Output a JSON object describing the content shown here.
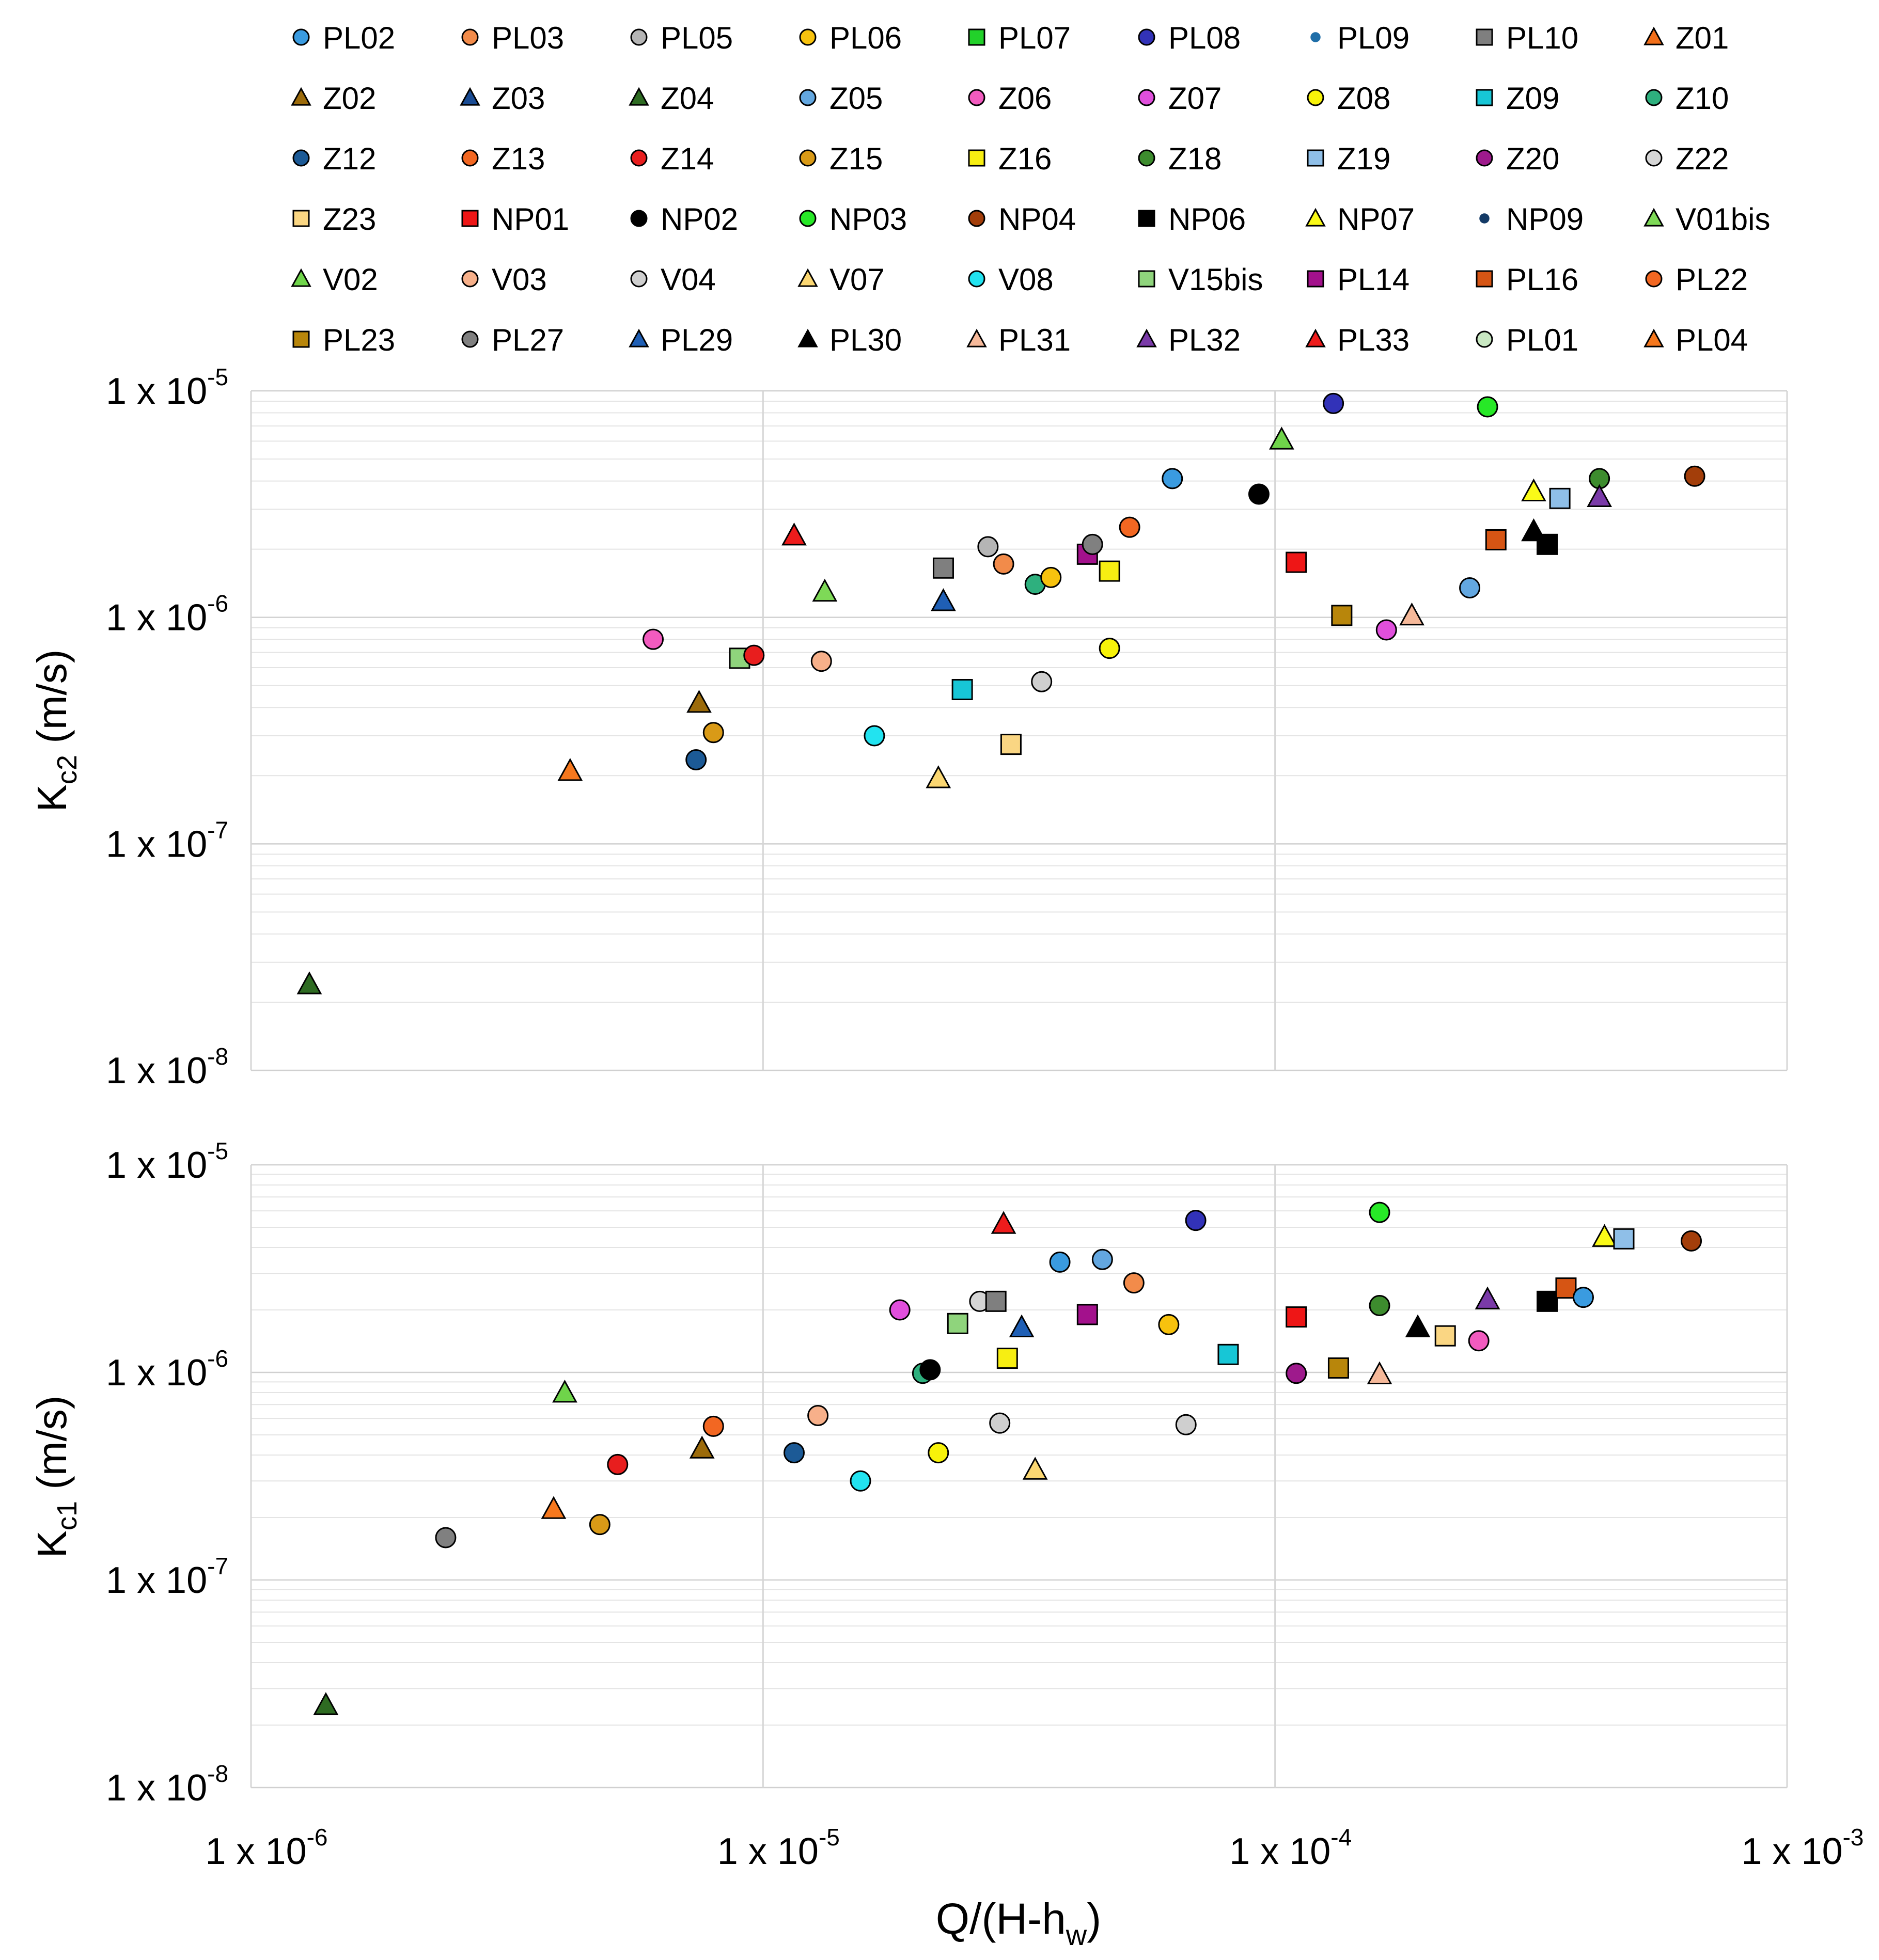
{
  "chart_data": [
    {
      "type": "scatter",
      "id": "top",
      "ylabel_main": "K",
      "ylabel_sub": "c2",
      "ylabel_unit": " (m/s)",
      "xscale": "log",
      "yscale": "log",
      "xlim": [
        1e-06,
        0.001
      ],
      "ylim": [
        1e-08,
        1e-05
      ],
      "ytick_values": [
        1e-08,
        1e-07,
        1e-06,
        1e-05
      ],
      "ytick_labels": [
        "1 x 10",
        "1 x 10",
        "1 x 10",
        "1 x 10"
      ],
      "ytick_exps": [
        "-8",
        "-7",
        "-6",
        "-5"
      ],
      "points": [
        {
          "label": "Z04",
          "x": 1.3e-06,
          "y": 2.4e-08
        },
        {
          "label": "PL04",
          "x": 4.2e-06,
          "y": 2.1e-07
        },
        {
          "label": "Z06",
          "x": 6.1e-06,
          "y": 8e-07
        },
        {
          "label": "Z02",
          "x": 7.5e-06,
          "y": 4.2e-07
        },
        {
          "label": "Z12",
          "x": 7.4e-06,
          "y": 2.35e-07
        },
        {
          "label": "Z15",
          "x": 8e-06,
          "y": 3.1e-07
        },
        {
          "label": "V15bis",
          "x": 9e-06,
          "y": 6.6e-07
        },
        {
          "label": "Z14",
          "x": 9.6e-06,
          "y": 6.8e-07
        },
        {
          "label": "PL33",
          "x": 1.15e-05,
          "y": 2.3e-06
        },
        {
          "label": "V01bis",
          "x": 1.32e-05,
          "y": 1.3e-06
        },
        {
          "label": "V03",
          "x": 1.3e-05,
          "y": 6.4e-07
        },
        {
          "label": "V08",
          "x": 1.65e-05,
          "y": 3e-07
        },
        {
          "label": "V07",
          "x": 2.2e-05,
          "y": 1.95e-07
        },
        {
          "label": "PL10",
          "x": 2.25e-05,
          "y": 1.65e-06
        },
        {
          "label": "PL29",
          "x": 2.25e-05,
          "y": 1.18e-06
        },
        {
          "label": "Z09",
          "x": 2.45e-05,
          "y": 4.8e-07
        },
        {
          "label": "PL05",
          "x": 2.75e-05,
          "y": 2.05e-06
        },
        {
          "label": "PL03",
          "x": 2.95e-05,
          "y": 1.72e-06
        },
        {
          "label": "Z23",
          "x": 3.05e-05,
          "y": 2.75e-07
        },
        {
          "label": "Z10",
          "x": 3.4e-05,
          "y": 1.4e-06
        },
        {
          "label": "PL06",
          "x": 3.65e-05,
          "y": 1.5e-06
        },
        {
          "label": "V04",
          "x": 3.5e-05,
          "y": 5.2e-07
        },
        {
          "label": "PL14",
          "x": 4.3e-05,
          "y": 1.9e-06
        },
        {
          "label": "PL27",
          "x": 4.4e-05,
          "y": 2.1e-06
        },
        {
          "label": "Z16",
          "x": 4.75e-05,
          "y": 1.6e-06
        },
        {
          "label": "Z08",
          "x": 4.75e-05,
          "y": 7.3e-07
        },
        {
          "label": "PL22",
          "x": 5.2e-05,
          "y": 2.5e-06
        },
        {
          "label": "PL02",
          "x": 6.3e-05,
          "y": 4.1e-06
        },
        {
          "label": "NP02",
          "x": 9.3e-05,
          "y": 3.5e-06
        },
        {
          "label": "V02",
          "x": 0.000103,
          "y": 6.1e-06
        },
        {
          "label": "NP01",
          "x": 0.00011,
          "y": 1.75e-06
        },
        {
          "label": "PL08",
          "x": 0.00013,
          "y": 8.8e-06
        },
        {
          "label": "PL23",
          "x": 0.000135,
          "y": 1.02e-06
        },
        {
          "label": "Z07",
          "x": 0.000165,
          "y": 8.8e-07
        },
        {
          "label": "PL31",
          "x": 0.000185,
          "y": 1.02e-06
        },
        {
          "label": "Z05",
          "x": 0.00024,
          "y": 1.35e-06
        },
        {
          "label": "NP03",
          "x": 0.00026,
          "y": 8.5e-06
        },
        {
          "label": "PL16",
          "x": 0.00027,
          "y": 2.2e-06
        },
        {
          "label": "NP07",
          "x": 0.00032,
          "y": 3.6e-06
        },
        {
          "label": "PL30",
          "x": 0.00032,
          "y": 2.4e-06
        },
        {
          "label": "NP06",
          "x": 0.00034,
          "y": 2.1e-06
        },
        {
          "label": "Z19",
          "x": 0.00036,
          "y": 3.35e-06
        },
        {
          "label": "Z18",
          "x": 0.00043,
          "y": 4.1e-06
        },
        {
          "label": "PL32",
          "x": 0.00043,
          "y": 3.4e-06
        },
        {
          "label": "NP04",
          "x": 0.00066,
          "y": 4.2e-06
        }
      ]
    },
    {
      "type": "scatter",
      "id": "bottom",
      "ylabel_main": "K",
      "ylabel_sub": "c1",
      "ylabel_unit": " (m/s)",
      "xscale": "log",
      "yscale": "log",
      "xlim": [
        1e-06,
        0.001
      ],
      "ylim": [
        1e-08,
        1e-05
      ],
      "xlabel_main": "Q/(H-h",
      "xlabel_sub": "w",
      "xlabel_end": ")",
      "xtick_values": [
        1e-06,
        1e-05,
        0.0001,
        0.001
      ],
      "xtick_labels": [
        "1 x 10",
        "1 x 10",
        "1 x 10",
        "1 x 10"
      ],
      "xtick_exps": [
        "-6",
        "-5",
        "-4",
        "-3"
      ],
      "ytick_values": [
        1e-08,
        1e-07,
        1e-06,
        1e-05
      ],
      "ytick_labels": [
        "1 x 10",
        "1 x 10",
        "1 x 10",
        "1 x 10"
      ],
      "ytick_exps": [
        "-8",
        "-7",
        "-6",
        "-5"
      ],
      "points": [
        {
          "label": "Z04",
          "x": 1.4e-06,
          "y": 2.5e-08
        },
        {
          "label": "PL27",
          "x": 2.4e-06,
          "y": 1.6e-07
        },
        {
          "label": "PL04",
          "x": 3.9e-06,
          "y": 2.2e-07
        },
        {
          "label": "V02",
          "x": 4.1e-06,
          "y": 8e-07
        },
        {
          "label": "Z15",
          "x": 4.8e-06,
          "y": 1.85e-07
        },
        {
          "label": "Z14",
          "x": 5.2e-06,
          "y": 3.6e-07
        },
        {
          "label": "Z02",
          "x": 7.6e-06,
          "y": 4.3e-07
        },
        {
          "label": "PL22",
          "x": 8e-06,
          "y": 5.5e-07
        },
        {
          "label": "Z12",
          "x": 1.15e-05,
          "y": 4.1e-07
        },
        {
          "label": "V03",
          "x": 1.28e-05,
          "y": 6.2e-07
        },
        {
          "label": "V08",
          "x": 1.55e-05,
          "y": 3e-07
        },
        {
          "label": "Z07",
          "x": 1.85e-05,
          "y": 2e-06
        },
        {
          "label": "Z10",
          "x": 2.05e-05,
          "y": 9.9e-07
        },
        {
          "label": "NP02",
          "x": 2.12e-05,
          "y": 1.03e-06
        },
        {
          "label": "Z08",
          "x": 2.2e-05,
          "y": 4.1e-07
        },
        {
          "label": "V15bis",
          "x": 2.4e-05,
          "y": 1.72e-06
        },
        {
          "label": "Z22",
          "x": 2.65e-05,
          "y": 2.2e-06
        },
        {
          "label": "PL10",
          "x": 2.85e-05,
          "y": 2.2e-06
        },
        {
          "label": "PL33",
          "x": 2.95e-05,
          "y": 5.2e-06
        },
        {
          "label": "V04",
          "x": 2.9e-05,
          "y": 5.7e-07
        },
        {
          "label": "Z16",
          "x": 3e-05,
          "y": 1.17e-06
        },
        {
          "label": "PL29",
          "x": 3.2e-05,
          "y": 1.65e-06
        },
        {
          "label": "V07",
          "x": 3.4e-05,
          "y": 3.4e-07
        },
        {
          "label": "PL02",
          "x": 3.8e-05,
          "y": 3.4e-06
        },
        {
          "label": "PL14",
          "x": 4.3e-05,
          "y": 1.9e-06
        },
        {
          "label": "Z05",
          "x": 4.6e-05,
          "y": 3.5e-06
        },
        {
          "label": "PL03",
          "x": 5.3e-05,
          "y": 2.7e-06
        },
        {
          "label": "PL06",
          "x": 6.2e-05,
          "y": 1.7e-06
        },
        {
          "label": "V04",
          "x": 6.7e-05,
          "y": 5.6e-07
        },
        {
          "label": "PL08",
          "x": 7e-05,
          "y": 5.4e-06
        },
        {
          "label": "Z09",
          "x": 8.1e-05,
          "y": 1.22e-06
        },
        {
          "label": "NP01",
          "x": 0.00011,
          "y": 1.85e-06
        },
        {
          "label": "Z20",
          "x": 0.00011,
          "y": 9.9e-07
        },
        {
          "label": "PL23",
          "x": 0.000133,
          "y": 1.05e-06
        },
        {
          "label": "NP03",
          "x": 0.00016,
          "y": 5.9e-06
        },
        {
          "label": "Z18",
          "x": 0.00016,
          "y": 2.1e-06
        },
        {
          "label": "PL31",
          "x": 0.00016,
          "y": 9.8e-07
        },
        {
          "label": "PL30",
          "x": 0.00019,
          "y": 1.65e-06
        },
        {
          "label": "Z23",
          "x": 0.000215,
          "y": 1.5e-06
        },
        {
          "label": "Z06",
          "x": 0.00025,
          "y": 1.42e-06
        },
        {
          "label": "PL32",
          "x": 0.00026,
          "y": 2.25e-06
        },
        {
          "label": "NP06",
          "x": 0.00034,
          "y": 2.2e-06
        },
        {
          "label": "PL16",
          "x": 0.00037,
          "y": 2.55e-06
        },
        {
          "label": "PL02",
          "x": 0.0004,
          "y": 2.3e-06
        },
        {
          "label": "NP07",
          "x": 0.00044,
          "y": 4.5e-06
        },
        {
          "label": "Z19",
          "x": 0.00048,
          "y": 4.4e-06
        },
        {
          "label": "NP04",
          "x": 0.00065,
          "y": 4.3e-06
        }
      ]
    }
  ],
  "legend": {
    "placement": "top",
    "entries": [
      {
        "label": "PL02",
        "marker": "circle",
        "color": "#3a9be0",
        "small": false
      },
      {
        "label": "PL03",
        "marker": "circle",
        "color": "#f28b4a",
        "small": false
      },
      {
        "label": "PL05",
        "marker": "circle",
        "color": "#b5b5b5",
        "small": false
      },
      {
        "label": "PL06",
        "marker": "circle",
        "color": "#f7c20e",
        "small": false
      },
      {
        "label": "PL07",
        "marker": "square",
        "color": "#22d12a",
        "small": false
      },
      {
        "label": "PL08",
        "marker": "circle",
        "color": "#3232b8",
        "small": false
      },
      {
        "label": "PL09",
        "marker": "circle",
        "color": "#1f6ea8",
        "small": true
      },
      {
        "label": "PL10",
        "marker": "square",
        "color": "#7f7f7f",
        "small": false
      },
      {
        "label": "Z01",
        "marker": "triangle",
        "color": "#f26f1a",
        "small": false
      },
      {
        "label": "Z02",
        "marker": "triangle",
        "color": "#9c6b0b",
        "small": false
      },
      {
        "label": "Z03",
        "marker": "triangle",
        "color": "#1a4c94",
        "small": false
      },
      {
        "label": "Z04",
        "marker": "triangle",
        "color": "#2e6b22",
        "small": false
      },
      {
        "label": "Z05",
        "marker": "circle",
        "color": "#63a7e0",
        "small": false
      },
      {
        "label": "Z06",
        "marker": "circle",
        "color": "#f25bbf",
        "small": false
      },
      {
        "label": "Z07",
        "marker": "circle",
        "color": "#e04fdc",
        "small": false
      },
      {
        "label": "Z08",
        "marker": "circle",
        "color": "#f7f20a",
        "small": false
      },
      {
        "label": "Z09",
        "marker": "square",
        "color": "#17c6d6",
        "small": false
      },
      {
        "label": "Z10",
        "marker": "circle",
        "color": "#2eb07e",
        "small": false
      },
      {
        "label": "Z12",
        "marker": "circle",
        "color": "#1c5a96",
        "small": false
      },
      {
        "label": "Z13",
        "marker": "circle",
        "color": "#f26722",
        "small": false
      },
      {
        "label": "Z14",
        "marker": "circle",
        "color": "#e81e1e",
        "small": false
      },
      {
        "label": "Z15",
        "marker": "circle",
        "color": "#d99a17",
        "small": false
      },
      {
        "label": "Z16",
        "marker": "square",
        "color": "#f7ee12",
        "small": false
      },
      {
        "label": "Z18",
        "marker": "circle",
        "color": "#3d8c2e",
        "small": false
      },
      {
        "label": "Z19",
        "marker": "square",
        "color": "#8fbfe8",
        "small": false
      },
      {
        "label": "Z20",
        "marker": "circle",
        "color": "#9e1a8c",
        "small": false
      },
      {
        "label": "Z22",
        "marker": "circle",
        "color": "#d6d6d6",
        "small": false
      },
      {
        "label": "Z23",
        "marker": "square",
        "color": "#fad683",
        "small": false
      },
      {
        "label": "NP01",
        "marker": "square",
        "color": "#ee1616",
        "small": false
      },
      {
        "label": "NP02",
        "marker": "circle",
        "color": "#000000",
        "small": false
      },
      {
        "label": "NP03",
        "marker": "circle",
        "color": "#27e827",
        "small": false
      },
      {
        "label": "NP04",
        "marker": "circle",
        "color": "#a33e0a",
        "small": false
      },
      {
        "label": "NP06",
        "marker": "square",
        "color": "#000000",
        "small": false
      },
      {
        "label": "NP07",
        "marker": "triangle",
        "color": "#fafa18",
        "small": false
      },
      {
        "label": "NP09",
        "marker": "circle",
        "color": "#143a66",
        "small": true
      },
      {
        "label": "V01bis",
        "marker": "triangle",
        "color": "#7ed957",
        "small": false
      },
      {
        "label": "V02",
        "marker": "triangle",
        "color": "#6fd44a",
        "small": false
      },
      {
        "label": "V03",
        "marker": "circle",
        "color": "#f7b08a",
        "small": false
      },
      {
        "label": "V04",
        "marker": "circle",
        "color": "#cfcfcf",
        "small": false
      },
      {
        "label": "V07",
        "marker": "triangle",
        "color": "#fbd772",
        "small": false
      },
      {
        "label": "V08",
        "marker": "circle",
        "color": "#22e3f0",
        "small": false
      },
      {
        "label": "V15bis",
        "marker": "square",
        "color": "#8fd47c",
        "small": false
      },
      {
        "label": "PL14",
        "marker": "square",
        "color": "#a3118c",
        "small": false
      },
      {
        "label": "PL16",
        "marker": "square",
        "color": "#d65514",
        "small": false
      },
      {
        "label": "PL22",
        "marker": "circle",
        "color": "#f26722",
        "small": false
      },
      {
        "label": "PL23",
        "marker": "square",
        "color": "#b8860b",
        "small": false
      },
      {
        "label": "PL27",
        "marker": "circle",
        "color": "#808080",
        "small": false
      },
      {
        "label": "PL29",
        "marker": "triangle",
        "color": "#1f5fb5",
        "small": false
      },
      {
        "label": "PL30",
        "marker": "triangle",
        "color": "#000000",
        "small": false
      },
      {
        "label": "PL31",
        "marker": "triangle",
        "color": "#f6b99a",
        "small": false
      },
      {
        "label": "PL32",
        "marker": "triangle",
        "color": "#7a3aa8",
        "small": false
      },
      {
        "label": "PL33",
        "marker": "triangle",
        "color": "#ee1c1c",
        "small": false
      },
      {
        "label": "PL01",
        "marker": "circle",
        "color": "#c9e8c2",
        "small": false
      },
      {
        "label": "PL04",
        "marker": "triangle",
        "color": "#f6781e",
        "small": false
      }
    ]
  }
}
